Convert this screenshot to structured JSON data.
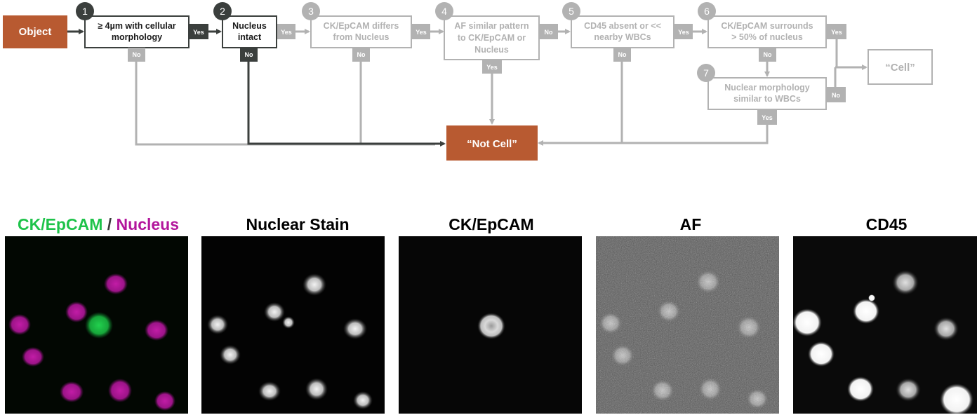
{
  "flowchart": {
    "start": "Object",
    "steps": [
      {
        "num": "1",
        "lines": [
          "≥ 4µm with cellular",
          "morphology"
        ],
        "yes": "Yes",
        "no": "No"
      },
      {
        "num": "2",
        "lines": [
          "Nucleus",
          "intact"
        ],
        "yes": "Yes",
        "no": "No"
      },
      {
        "num": "3",
        "lines": [
          "CK/EpCAM differs",
          "from Nucleus"
        ],
        "yes": "Yes",
        "no": "No"
      },
      {
        "num": "4",
        "lines": [
          "AF similar pattern",
          "to CK/EpCAM or",
          "Nucleus"
        ],
        "yes": "Yes",
        "no": "No"
      },
      {
        "num": "5",
        "lines": [
          "CD45 absent or <<",
          "nearby WBCs"
        ],
        "yes": "Yes",
        "no": "No"
      },
      {
        "num": "6",
        "lines": [
          "CK/EpCAM surrounds",
          "> 50% of nucleus"
        ],
        "yes": "Yes",
        "no": "No"
      },
      {
        "num": "7",
        "lines": [
          "Nuclear morphology",
          "similar to WBCs"
        ],
        "yes": "Yes",
        "no": "No"
      }
    ],
    "not_cell": "“Not Cell”",
    "cell": "“Cell”"
  },
  "panels": [
    {
      "id": "merged",
      "title_parts": [
        "CK/EpCAM",
        " / ",
        "Nucleus"
      ]
    },
    {
      "id": "nuclear",
      "title": "Nuclear Stain"
    },
    {
      "id": "ckepcam",
      "title": "CK/EpCAM"
    },
    {
      "id": "af",
      "title": "AF"
    },
    {
      "id": "cd45",
      "title": "CD45"
    }
  ],
  "colors": {
    "active": "#3b3f3d",
    "inactive": "#b2b2b2",
    "terminal": "#b85a31",
    "green": "#1ec34a",
    "magenta": "#b3169c"
  }
}
